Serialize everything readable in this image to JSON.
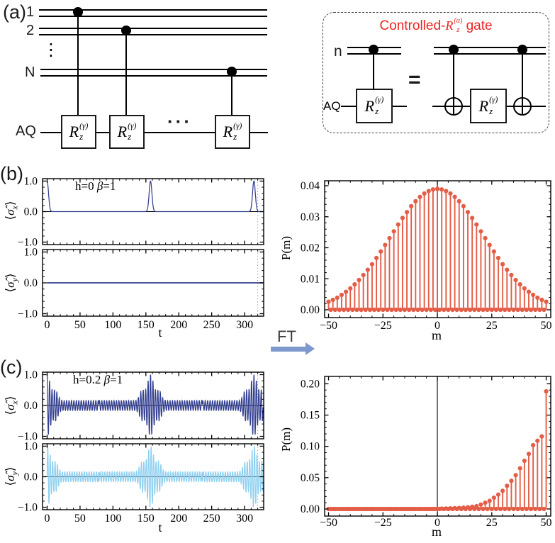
{
  "panels": {
    "a_label": "(a)",
    "b_label": "(b)",
    "c_label": "(c)"
  },
  "circuit": {
    "wire1": "1",
    "wire2": "2",
    "vdots": "⋮",
    "wireN": "N",
    "aq": "AQ",
    "gate": {
      "base": "R",
      "sub": "z",
      "sup": "(γ)"
    },
    "gates_ellipsis": "···"
  },
  "inset": {
    "title_prefix": "Controlled-",
    "title_gate": {
      "base": "R",
      "sub": "z",
      "sup": "(α)"
    },
    "title_suffix": " gate",
    "title_color": "#ee2222",
    "control_label": "n",
    "target_label": "AQ",
    "equals": "=",
    "gate": {
      "base": "R",
      "sub": "z",
      "sup": "(γ)"
    }
  },
  "ft": {
    "label": "FT",
    "arrow_color": "#7e99cb"
  },
  "colors": {
    "sigma_x": "#333f90",
    "sigma_y": "#8fd0f0",
    "stem": "#e45d47",
    "frame": "#000000"
  },
  "panel_b": {
    "annotation": {
      "prefix": "h=0 ",
      "beta": "β",
      "suffix": "=1"
    },
    "ylabel_top": {
      "bra": "⟨",
      "sigma": "σ̂",
      "sub": "x",
      "ket": "⟩"
    },
    "ylabel_bottom": {
      "bra": "⟨",
      "sigma": "σ̂",
      "sub": "y",
      "ket": "⟩"
    },
    "xlabel": "t",
    "right_ylabel": "P(m)",
    "right_xlabel": "m"
  },
  "panel_c": {
    "annotation": {
      "prefix": "h=0.2 ",
      "beta": "β",
      "suffix": "=1"
    },
    "ylabel_top": {
      "bra": "⟨",
      "sigma": "σ̂",
      "sub": "x",
      "ket": "⟩"
    },
    "ylabel_bottom": {
      "bra": "⟨",
      "sigma": "σ̂",
      "sub": "y",
      "ket": "⟩"
    },
    "xlabel": "t",
    "right_ylabel": "P(m)",
    "right_xlabel": "m"
  },
  "chart_data": [
    {
      "id": "b_time_series",
      "type": "line",
      "panel": "b",
      "annotation": "h=0 β=1",
      "xlabel": "t",
      "xlim": [
        -7,
        329
      ],
      "xticks": [
        0,
        50,
        100,
        150,
        200,
        250,
        300
      ],
      "xtick_labels": [
        "0",
        "50",
        "100",
        "150",
        "200",
        "250",
        "300"
      ],
      "x_minor_step": 10,
      "gridline_x": 320,
      "subplots": [
        {
          "ylabel": "⟨σ̂x⟩",
          "ylim": [
            -1.08,
            1.08
          ],
          "yticks": [
            1,
            0,
            -1
          ],
          "ytick_labels": [
            "1.0",
            "0.0",
            "−1.0"
          ],
          "y_minor_step": 0.2,
          "color_key": "sigma_x",
          "signal_model": {
            "kind": "gaussian_peaks",
            "centers": [
              0,
              157.1,
              314.2
            ],
            "amplitude": 1.0,
            "peak_width": 3.0,
            "baseline": 0.0
          }
        },
        {
          "ylabel": "⟨σ̂y⟩",
          "ylim": [
            -1.08,
            1.08
          ],
          "yticks": [
            1,
            0,
            -1
          ],
          "ytick_labels": [
            "1.0",
            "0.0",
            "−1.0"
          ],
          "y_minor_step": 0.2,
          "color_key": "sigma_x",
          "signal_model": {
            "kind": "constant",
            "value": 0.0
          }
        }
      ]
    },
    {
      "id": "b_distribution",
      "type": "stem",
      "panel": "b",
      "xlabel": "m",
      "ylabel": "P(m)",
      "xlim": [
        -51.8,
        52.1
      ],
      "ylim": [
        0,
        0.04
      ],
      "xticks": [
        -50,
        -25,
        0,
        25,
        50
      ],
      "xtick_labels": [
        "−50",
        "−25",
        "0",
        "25",
        "50"
      ],
      "x_minor_step": 5,
      "yticks": [
        0,
        0.01,
        0.02,
        0.03,
        0.04
      ],
      "ytick_labels": [
        "0.00",
        "0.01",
        "0.02",
        "0.03",
        "0.04"
      ],
      "y_minor_step": 0.002,
      "zero_line_x": 0,
      "m_start": -50,
      "m_step": 2,
      "odd_m_value": 0,
      "values": [
        0.0026,
        0.0032,
        0.0039,
        0.0048,
        0.0058,
        0.0069,
        0.0082,
        0.0096,
        0.0112,
        0.0129,
        0.0147,
        0.0167,
        0.0188,
        0.0209,
        0.0231,
        0.0253,
        0.0275,
        0.0296,
        0.0315,
        0.0334,
        0.035,
        0.0364,
        0.0375,
        0.0383,
        0.0388,
        0.039,
        0.0388,
        0.0383,
        0.0375,
        0.0364,
        0.035,
        0.0334,
        0.0315,
        0.0296,
        0.0275,
        0.0253,
        0.0231,
        0.0209,
        0.0188,
        0.0167,
        0.0147,
        0.0129,
        0.0112,
        0.0096,
        0.0082,
        0.0069,
        0.0058,
        0.0048,
        0.0039,
        0.0032,
        0.0026
      ]
    },
    {
      "id": "c_time_series",
      "type": "line",
      "panel": "c",
      "annotation": "h=0.2 β=1",
      "xlabel": "t",
      "xlim": [
        -7,
        329
      ],
      "xticks": [
        0,
        50,
        100,
        150,
        200,
        250,
        300
      ],
      "xtick_labels": [
        "0",
        "50",
        "100",
        "150",
        "200",
        "250",
        "300"
      ],
      "x_minor_step": 10,
      "gridline_x": 320,
      "subplots": [
        {
          "ylabel": "⟨σ̂x⟩",
          "ylim": [
            -1.08,
            1.08
          ],
          "yticks": [
            1,
            0,
            -1
          ],
          "ytick_labels": [
            "1.0",
            "0.0",
            "−1.0"
          ],
          "y_minor_step": 0.2,
          "color_key": "sigma_x",
          "signal_model": {
            "kind": "modulated_cos",
            "centers": [
              0,
              157.1,
              314.2
            ],
            "carrier_period": 3.7,
            "env_base": 0.16,
            "env_width": 7,
            "side_amp": 0.32,
            "side_center": 13,
            "side_width": 5
          }
        },
        {
          "ylabel": "⟨σ̂y⟩",
          "ylim": [
            -1.08,
            1.08
          ],
          "yticks": [
            1,
            0,
            -1
          ],
          "ytick_labels": [
            "1.0",
            "0.0",
            "−1.0"
          ],
          "y_minor_step": 0.2,
          "color_key": "sigma_y",
          "signal_model": {
            "kind": "modulated_sin",
            "centers": [
              0,
              157.1,
              314.2
            ],
            "carrier_period": 3.7,
            "env_base": 0.16,
            "env_width": 7,
            "side_amp": 0.32,
            "side_center": 13,
            "side_width": 5
          }
        }
      ]
    },
    {
      "id": "c_distribution",
      "type": "stem",
      "panel": "c",
      "xlabel": "m",
      "ylabel": "P(m)",
      "xlim": [
        -51.8,
        52.1
      ],
      "ylim": [
        0,
        0.205
      ],
      "xticks": [
        -50,
        -25,
        0,
        25,
        50
      ],
      "xtick_labels": [
        "−50",
        "−25",
        "0",
        "25",
        "50"
      ],
      "x_minor_step": 5,
      "yticks": [
        0,
        0.05,
        0.1,
        0.15,
        0.2
      ],
      "ytick_labels": [
        "0.00",
        "0.05",
        "0.10",
        "0.15",
        "0.20"
      ],
      "y_minor_step": 0.01,
      "zero_line_x": 0,
      "m_start": -50,
      "m_step": 2,
      "odd_m_value": 0,
      "values": [
        0,
        0,
        0,
        0,
        0,
        0,
        0,
        0,
        0,
        0,
        0,
        0,
        0,
        0,
        0,
        0,
        0,
        0,
        0,
        0,
        0,
        0,
        0,
        0,
        0,
        0.0005,
        0.0006,
        0.0008,
        0.001,
        0.0013,
        0.0016,
        0.0021,
        0.0027,
        0.0035,
        0.0045,
        0.007,
        0.01,
        0.013,
        0.018,
        0.023,
        0.029,
        0.037,
        0.045,
        0.054,
        0.065,
        0.077,
        0.088,
        0.102,
        0.109,
        0.116,
        0.188
      ]
    }
  ]
}
